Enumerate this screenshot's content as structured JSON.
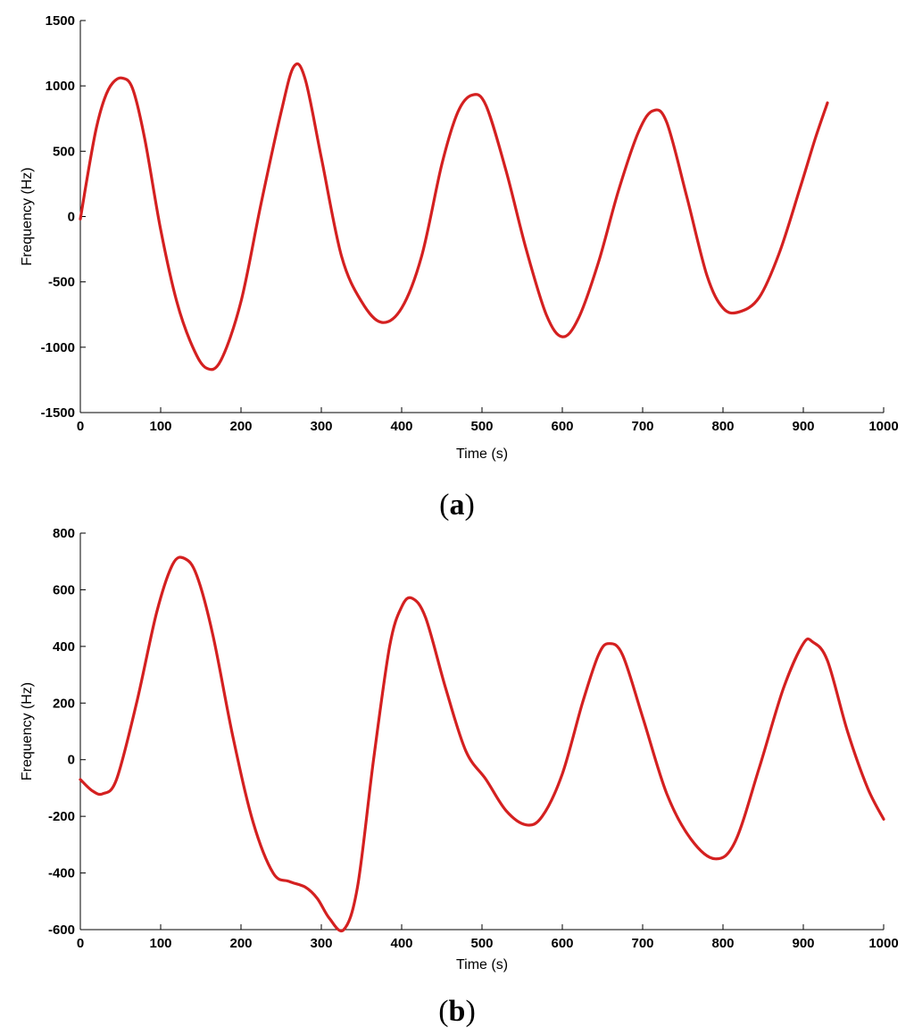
{
  "chart_data": [
    {
      "type": "line",
      "panel_label": "a",
      "xlabel": "Time (s)",
      "ylabel": "Frequency (Hz)",
      "xlim": [
        0,
        1000
      ],
      "ylim": [
        -1500,
        1500
      ],
      "xticks": [
        0,
        100,
        200,
        300,
        400,
        500,
        600,
        700,
        800,
        900,
        1000
      ],
      "yticks": [
        -1500,
        -1000,
        -500,
        0,
        500,
        1000,
        1500
      ],
      "grid": false,
      "line_color": "#d42020",
      "series": [
        {
          "x": [
            0,
            10,
            20,
            30,
            40,
            52,
            65,
            80,
            100,
            120,
            140,
            157,
            175,
            200,
            225,
            250,
            266,
            280,
            300,
            325,
            350,
            375,
            400,
            425,
            450,
            470,
            488,
            505,
            530,
            555,
            580,
            600,
            620,
            645,
            670,
            695,
            713,
            730,
            755,
            780,
            800,
            820,
            845,
            870,
            895,
            915,
            930
          ],
          "y": [
            -20,
            350,
            680,
            900,
            1020,
            1060,
            980,
            600,
            -100,
            -650,
            -1000,
            -1160,
            -1100,
            -650,
            100,
            800,
            1150,
            1050,
            450,
            -300,
            -650,
            -810,
            -700,
            -300,
            400,
            800,
            930,
            850,
            350,
            -250,
            -750,
            -920,
            -780,
            -350,
            200,
            650,
            810,
            720,
            150,
            -450,
            -700,
            -730,
            -620,
            -280,
            200,
            600,
            870
          ]
        }
      ]
    },
    {
      "type": "line",
      "panel_label": "b",
      "xlabel": "Time (s)",
      "ylabel": "Frequency (Hz)",
      "xlim": [
        0,
        1000
      ],
      "ylim": [
        -600,
        800
      ],
      "xticks": [
        0,
        100,
        200,
        300,
        400,
        500,
        600,
        700,
        800,
        900,
        1000
      ],
      "yticks": [
        -600,
        -400,
        -200,
        0,
        200,
        400,
        600,
        800
      ],
      "grid": false,
      "line_color": "#d42020",
      "series": [
        {
          "x": [
            0,
            15,
            28,
            45,
            70,
            95,
            115,
            130,
            145,
            165,
            190,
            215,
            240,
            260,
            280,
            295,
            310,
            328,
            345,
            365,
            385,
            400,
            413,
            430,
            455,
            480,
            505,
            530,
            555,
            575,
            600,
            625,
            645,
            658,
            675,
            700,
            730,
            760,
            790,
            815,
            845,
            875,
            900,
            912,
            930,
            955,
            980,
            1000
          ],
          "y": [
            -70,
            -110,
            -120,
            -70,
            200,
            520,
            690,
            710,
            650,
            440,
            80,
            -220,
            -400,
            -430,
            -450,
            -490,
            -560,
            -600,
            -450,
            0,
            400,
            540,
            570,
            500,
            250,
            30,
            -70,
            -180,
            -230,
            -200,
            -50,
            200,
            370,
            410,
            370,
            150,
            -120,
            -280,
            -350,
            -290,
            -30,
            250,
            410,
            415,
            350,
            100,
            -100,
            -210
          ]
        }
      ]
    }
  ]
}
